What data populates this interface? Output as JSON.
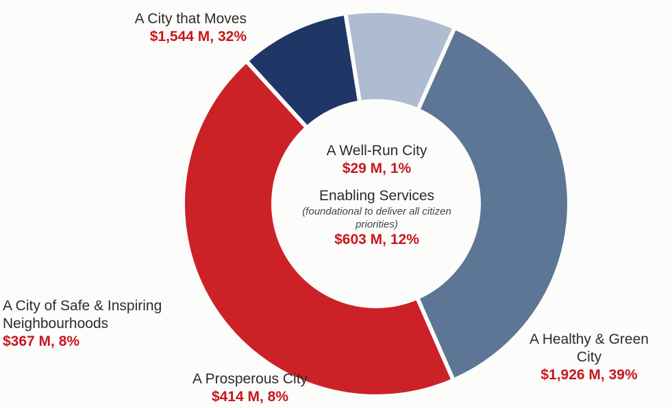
{
  "chart_data": {
    "type": "pie",
    "style": "donut",
    "segments": [
      {
        "name": "A City that Moves",
        "value_label": "$1,544 M, 32%",
        "amount_millions": 1544,
        "percent": 32,
        "color": "#5d7696"
      },
      {
        "name": "A Healthy & Green City",
        "value_label": "$1,926 M, 39%",
        "amount_millions": 1926,
        "percent": 39,
        "color": "#cc2127"
      },
      {
        "name": "A Prosperous City",
        "value_label": "$414 M, 8%",
        "amount_millions": 414,
        "percent": 8,
        "color": "#1e3766"
      },
      {
        "name": "A City of Safe & Inspiring Neighbourhoods",
        "value_label": "$367 M, 8%",
        "amount_millions": 367,
        "percent": 8,
        "color": "#aebbd0"
      }
    ],
    "center": {
      "well_run": {
        "name": "A Well-Run City",
        "value_label": "$29 M, 1%"
      },
      "enabling": {
        "name": "Enabling Services",
        "note": "(foundational to deliver all citizen priorities)",
        "value_label": "$603 M, 12%"
      }
    }
  },
  "labels": {
    "moves": {
      "name": "A City that Moves",
      "value": "$1,544 M, 32%"
    },
    "safe": {
      "name_line1": "A City of Safe & Inspiring",
      "name_line2": "Neighbourhoods",
      "value": "$367 M, 8%"
    },
    "prosperous": {
      "name": "A Prosperous City",
      "value": "$414 M, 8%"
    },
    "healthy": {
      "name_line1": "A Healthy & Green",
      "name_line2": "City",
      "value": "$1,926 M, 39%"
    }
  }
}
